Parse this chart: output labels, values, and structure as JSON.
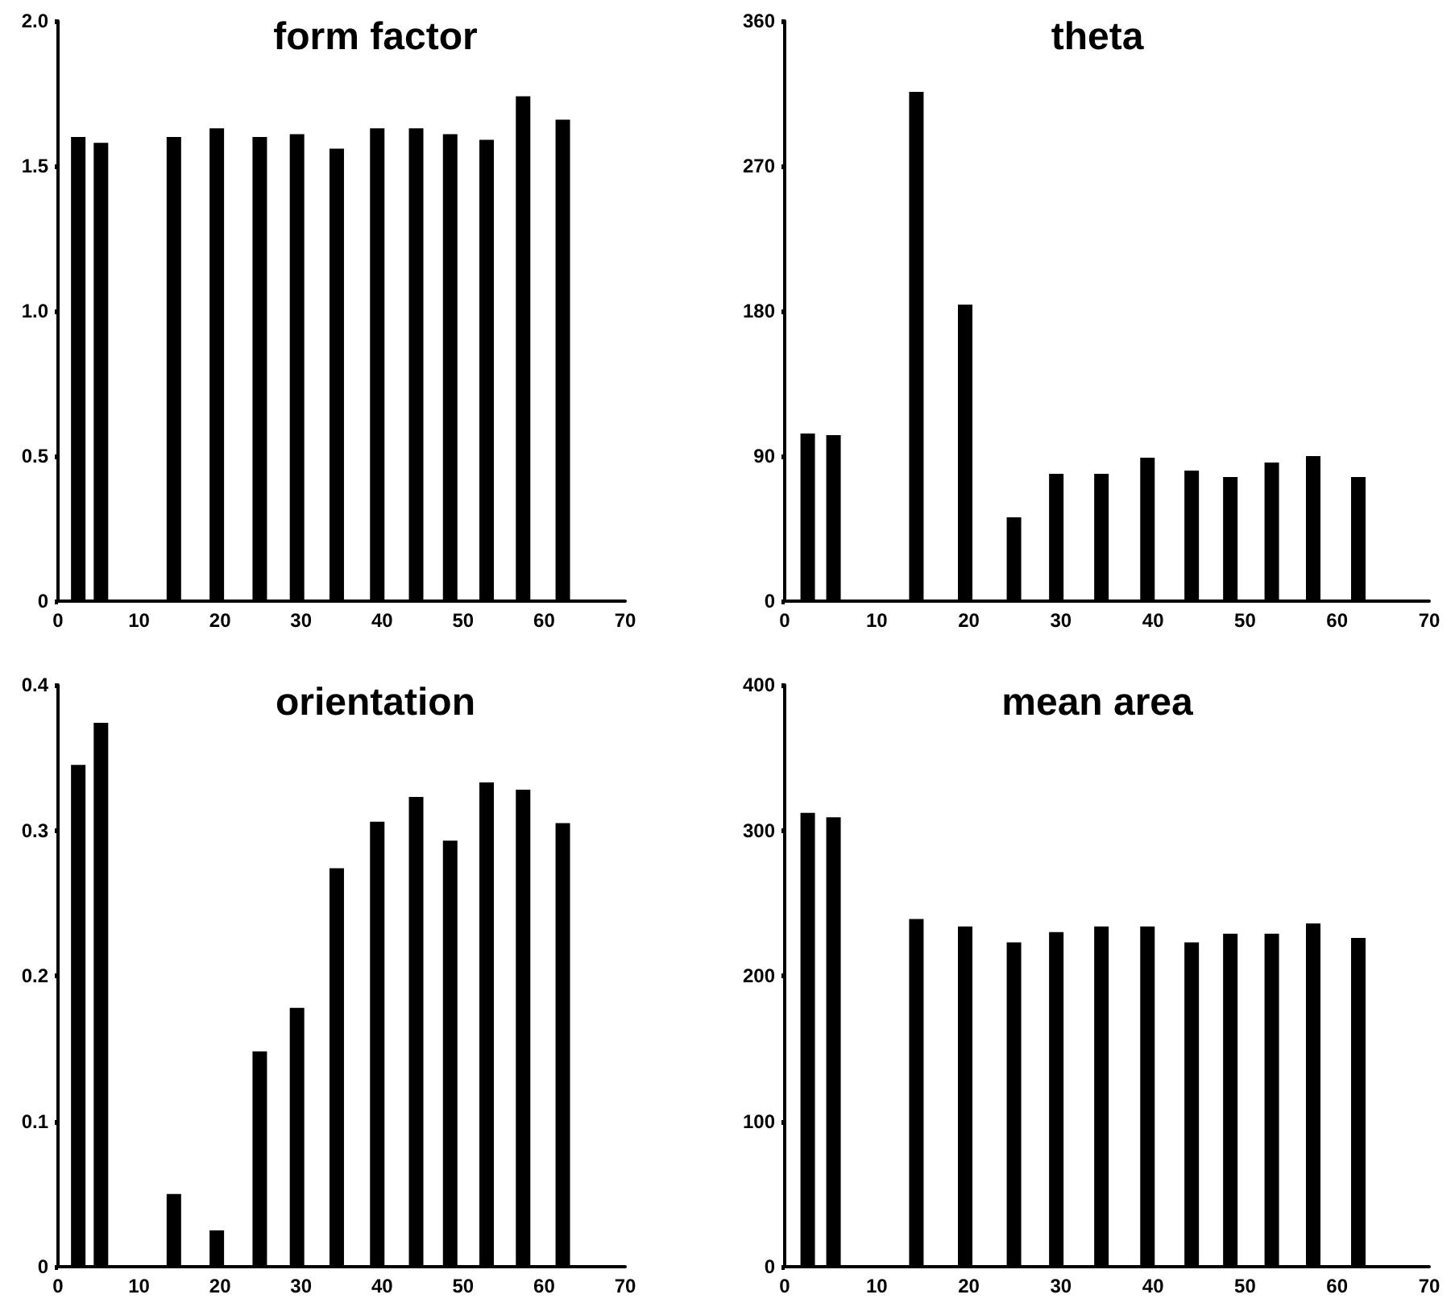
{
  "chart_data": [
    {
      "type": "bar",
      "title": "form factor",
      "x": [
        2.5,
        5.3,
        14.3,
        19.6,
        24.9,
        29.5,
        34.4,
        39.4,
        44.2,
        48.4,
        52.9,
        57.4,
        62.3
      ],
      "values": [
        1.6,
        1.58,
        1.6,
        1.63,
        1.6,
        1.61,
        1.56,
        1.63,
        1.63,
        1.61,
        1.59,
        1.74,
        1.66
      ],
      "color": "#000000",
      "xlim": [
        0,
        70
      ],
      "xticks": [
        0,
        10,
        20,
        30,
        40,
        50,
        60,
        70
      ],
      "ylim": [
        0,
        2
      ],
      "yticks": [
        0,
        {
          "value": 0.5,
          "label": "0.5"
        },
        {
          "value": 1,
          "label": "1.0"
        },
        {
          "value": 1.5,
          "label": "1.5"
        },
        {
          "value": 2,
          "label": "2.0"
        }
      ]
    },
    {
      "type": "bar",
      "title": "theta",
      "x": [
        2.5,
        5.3,
        14.3,
        19.6,
        24.9,
        29.5,
        34.4,
        39.4,
        44.2,
        48.4,
        52.9,
        57.4,
        62.3
      ],
      "values": [
        104,
        103,
        316,
        184,
        52,
        79,
        79,
        89,
        81,
        77,
        86,
        90,
        77
      ],
      "color": "#000000",
      "xlim": [
        0,
        70
      ],
      "xticks": [
        0,
        10,
        20,
        30,
        40,
        50,
        60,
        70
      ],
      "ylim": [
        0,
        360
      ],
      "yticks": [
        0,
        90,
        180,
        270,
        360
      ]
    },
    {
      "type": "bar",
      "title": "orientation",
      "x": [
        2.5,
        5.3,
        14.3,
        19.6,
        24.9,
        29.5,
        34.4,
        39.4,
        44.2,
        48.4,
        52.9,
        57.4,
        62.3
      ],
      "values": [
        0.345,
        0.374,
        0.05,
        0.025,
        0.148,
        0.178,
        0.274,
        0.306,
        0.323,
        0.293,
        0.333,
        0.328,
        0.305
      ],
      "color": "#000000",
      "xlim": [
        0,
        70
      ],
      "xticks": [
        0,
        10,
        20,
        30,
        40,
        50,
        60,
        70
      ],
      "ylim": [
        0,
        0.4
      ],
      "yticks": [
        0,
        0.1,
        0.2,
        0.3,
        0.4
      ]
    },
    {
      "type": "bar",
      "title": "mean area",
      "x": [
        2.5,
        5.3,
        14.3,
        19.6,
        24.9,
        29.5,
        34.4,
        39.4,
        44.2,
        48.4,
        52.9,
        57.4,
        62.3
      ],
      "values": [
        312,
        309,
        239,
        234,
        223,
        230,
        234,
        234,
        223,
        229,
        229,
        236,
        226
      ],
      "color": "#000000",
      "xlim": [
        0,
        70
      ],
      "xticks": [
        0,
        10,
        20,
        30,
        40,
        50,
        60,
        70
      ],
      "ylim": [
        0,
        400
      ],
      "yticks": [
        0,
        100,
        200,
        300,
        400
      ]
    }
  ]
}
